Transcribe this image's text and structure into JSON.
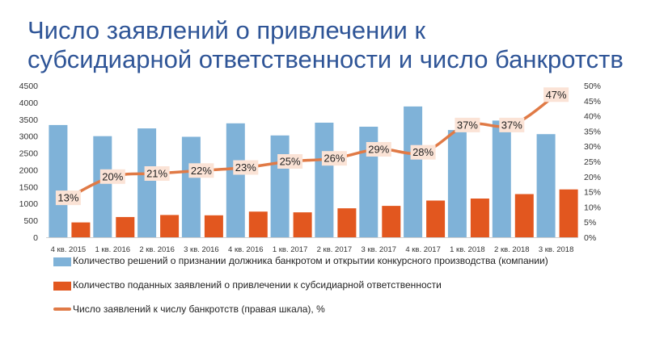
{
  "title": {
    "line1": "Число заявлений о привлечении к",
    "line2": "субсидиарной ответственности и число банкротств"
  },
  "colors": {
    "title": "#2f5597",
    "bankruptcies": "#7fb2d8",
    "claims": "#e2571f",
    "ratio": "#e07a46",
    "label_bg": "#fbe3d6"
  },
  "chart_data": {
    "type": "bar",
    "categories": [
      "4 кв. 2015",
      "1 кв. 2016",
      "2 кв. 2016",
      "3 кв. 2016",
      "4 кв. 2016",
      "1 кв. 2017",
      "2 кв. 2017",
      "3 кв. 2017",
      "4 кв. 2017",
      "1 кв. 2018",
      "2 кв. 2018",
      "3 кв. 2018"
    ],
    "left_axis": {
      "ylim": [
        0,
        4500
      ],
      "ticks": [
        "0",
        "500",
        "1000",
        "1500",
        "2000",
        "2500",
        "3000",
        "3500",
        "4000",
        "4500"
      ]
    },
    "right_axis": {
      "ylim": [
        0,
        50
      ],
      "ticks": [
        "0%",
        "5%",
        "10%",
        "15%",
        "20%",
        "25%",
        "30%",
        "35%",
        "40%",
        "45%",
        "50%"
      ]
    },
    "series": [
      {
        "name": "Количество решений о признании должника банкротом и открытии конкурсного производства (компании)",
        "type": "bar",
        "axis": "left",
        "values": [
          3330,
          3000,
          3230,
          2980,
          3380,
          3020,
          3400,
          3280,
          3880,
          3180,
          3460,
          3060
        ]
      },
      {
        "name": "Количество поданных заявлений о привлечении к субсидиарной ответственности",
        "type": "bar",
        "axis": "left",
        "values": [
          440,
          600,
          660,
          650,
          760,
          740,
          860,
          930,
          1090,
          1150,
          1280,
          1420
        ]
      },
      {
        "name": "Число заявлений к числу банкротств (правая шкала), %",
        "type": "line",
        "axis": "right",
        "values": [
          13,
          20,
          21,
          22,
          23,
          25,
          26,
          29,
          28,
          37,
          37,
          47
        ],
        "labels": [
          "13%",
          "20%",
          "21%",
          "22%",
          "23%",
          "25%",
          "26%",
          "29%",
          "28%",
          "37%",
          "37%",
          "47%"
        ]
      }
    ],
    "legend_position": "bottom",
    "grid": false
  }
}
